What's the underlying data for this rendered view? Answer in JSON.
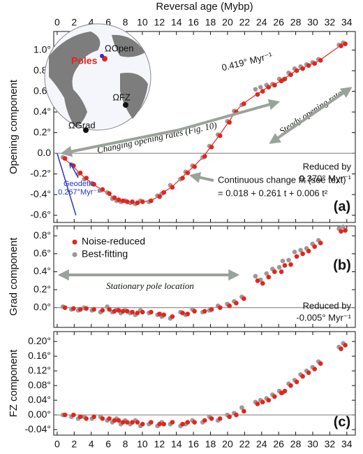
{
  "chart_data": [
    {
      "type": "scatter",
      "x_label": "Reversal age (Mybp)",
      "y_label": "Opening component",
      "x": [
        0.8,
        1.8,
        2.6,
        3.3,
        4.2,
        5.2,
        6.0,
        6.6,
        7.1,
        7.6,
        8.1,
        8.7,
        9.3,
        9.9,
        10.9,
        11.9,
        12.4,
        13.4,
        14.6,
        15.2,
        16.0,
        17.2,
        18.0,
        19.0,
        20.1,
        20.9,
        21.8,
        23.4,
        24.0,
        24.7,
        25.4,
        26.2,
        26.6,
        27.3,
        28.0,
        28.7,
        29.4,
        30.1,
        30.8,
        33.2,
        33.7
      ],
      "series": [
        {
          "name": "Best-fitting",
          "color": "#999999",
          "values": [
            -0.04,
            -0.11,
            -0.2,
            -0.25,
            -0.29,
            -0.36,
            -0.38,
            -0.44,
            -0.46,
            -0.47,
            -0.46,
            -0.48,
            -0.49,
            -0.46,
            -0.47,
            -0.41,
            -0.39,
            -0.31,
            -0.25,
            -0.18,
            -0.12,
            -0.04,
            0.07,
            0.18,
            0.31,
            0.41,
            0.47,
            0.62,
            0.64,
            0.66,
            0.67,
            0.72,
            0.71,
            0.78,
            0.82,
            0.84,
            0.86,
            0.88,
            0.91,
            1.05,
            1.07
          ]
        },
        {
          "name": "Noise-reduced",
          "color": "#e8231a",
          "line": true,
          "values": [
            -0.05,
            -0.12,
            -0.19,
            -0.24,
            -0.3,
            -0.35,
            -0.39,
            -0.43,
            -0.45,
            -0.46,
            -0.47,
            -0.47,
            -0.48,
            -0.47,
            -0.46,
            -0.42,
            -0.38,
            -0.33,
            -0.24,
            -0.19,
            -0.13,
            -0.03,
            0.06,
            0.17,
            0.3,
            0.4,
            0.48,
            0.57,
            0.6,
            0.64,
            0.66,
            0.7,
            0.72,
            0.76,
            0.8,
            0.82,
            0.85,
            0.87,
            0.9,
            1.04,
            1.06
          ]
        }
      ],
      "geodetic": {
        "x": [
          0,
          2.2
        ],
        "y": [
          0,
          -0.6
        ],
        "color": "#2233cc"
      },
      "xlim": [
        -0.4,
        35
      ],
      "xticks": [
        0,
        2,
        4,
        6,
        8,
        10,
        12,
        14,
        16,
        18,
        20,
        22,
        24,
        26,
        28,
        30,
        32,
        34
      ],
      "ylim": [
        -0.67,
        1.18
      ],
      "yticks": [
        {
          "value": -0.6,
          "label": "-0.6°"
        },
        {
          "value": -0.4,
          "label": "-0.4°"
        },
        {
          "value": -0.2,
          "label": "-0.2°"
        },
        {
          "value": 0.0,
          "label": "0.0"
        },
        {
          "value": 0.2,
          "label": "0.2°"
        },
        {
          "value": 0.4,
          "label": "0.4°"
        },
        {
          "value": 0.6,
          "label": "0.6°"
        },
        {
          "value": 0.8,
          "label": "0.8°"
        },
        {
          "value": 1.0,
          "label": "1.0°"
        }
      ],
      "annotations": {
        "rate": "0.419° Myr⁻¹",
        "steady": "Steady opening rates",
        "changing": "Changing opening rates (Fig. 10)",
        "reduced": "Reduced by",
        "reduced_rate": "0.370° Myr⁻¹",
        "fit": "Continuous change fit (see text)",
        "fit_eq": "= 0.018 + 0.261 t + 0.006 t²",
        "geodetic": "Geodetic",
        "geodetic_rate": "0.267°Myr⁻¹",
        "panel": "(a)"
      },
      "inset": {
        "poles": "Poles",
        "open": "ΩOpen",
        "fz": "ΩFZ",
        "grad": "ΩGrad"
      }
    },
    {
      "type": "scatter",
      "y_label": "Grad component",
      "legend": "upper left",
      "x": [
        0.8,
        1.8,
        2.6,
        3.3,
        4.2,
        5.2,
        6.0,
        6.6,
        7.1,
        7.6,
        8.1,
        8.7,
        9.3,
        9.9,
        10.9,
        11.9,
        12.4,
        13.4,
        14.6,
        15.2,
        16.0,
        17.2,
        18.0,
        19.0,
        20.1,
        20.9,
        21.8,
        23.4,
        24.0,
        24.7,
        25.4,
        26.2,
        26.6,
        27.3,
        28.0,
        28.7,
        29.4,
        30.1,
        30.8,
        33.2,
        33.7
      ],
      "series": [
        {
          "name": "Best-fitting",
          "color": "#999999",
          "values": [
            0.01,
            -0.02,
            -0.03,
            0.0,
            -0.03,
            -0.05,
            0.01,
            -0.05,
            -0.02,
            -0.06,
            -0.03,
            -0.06,
            -0.08,
            -0.03,
            -0.06,
            -0.08,
            -0.1,
            -0.12,
            -0.05,
            -0.08,
            -0.02,
            -0.05,
            -0.03,
            0.02,
            0.04,
            0.07,
            0.12,
            0.35,
            0.31,
            0.38,
            0.43,
            0.45,
            0.52,
            0.53,
            0.62,
            0.64,
            0.66,
            0.71,
            0.75,
            0.88,
            0.9
          ]
        },
        {
          "name": "Noise-reduced",
          "color": "#e8231a",
          "values": [
            0.0,
            -0.01,
            -0.02,
            -0.01,
            -0.02,
            -0.03,
            -0.02,
            -0.04,
            -0.03,
            -0.04,
            -0.04,
            -0.05,
            -0.06,
            -0.05,
            -0.05,
            -0.07,
            -0.08,
            -0.1,
            -0.06,
            -0.07,
            -0.04,
            -0.04,
            -0.02,
            0.0,
            0.02,
            0.05,
            0.1,
            0.3,
            0.27,
            0.34,
            0.4,
            0.4,
            0.47,
            0.48,
            0.57,
            0.6,
            0.63,
            0.68,
            0.72,
            0.85,
            0.86
          ]
        }
      ],
      "xlim": [
        -0.4,
        35
      ],
      "xticks": [
        0,
        2,
        4,
        6,
        8,
        10,
        12,
        14,
        16,
        18,
        20,
        22,
        24,
        26,
        28,
        30,
        32,
        34
      ],
      "ylim": [
        -0.22,
        0.91
      ],
      "yticks": [
        {
          "value": 0.0,
          "label": "0.0°"
        },
        {
          "value": 0.2,
          "label": "0.2°"
        },
        {
          "value": 0.4,
          "label": "0.4°"
        },
        {
          "value": 0.6,
          "label": "0.6°"
        },
        {
          "value": 0.8,
          "label": "0.8°"
        }
      ],
      "annotations": {
        "stationary": "Stationary pole location",
        "reduced": "Reduced by",
        "reduced_rate": "-0.005° Myr⁻¹",
        "panel": "(b)"
      }
    },
    {
      "type": "scatter",
      "y_label": "FZ component",
      "x": [
        0.8,
        1.8,
        2.6,
        3.3,
        4.2,
        5.2,
        6.0,
        6.6,
        7.1,
        7.6,
        8.1,
        8.7,
        9.3,
        9.9,
        10.9,
        11.9,
        12.4,
        13.4,
        14.6,
        15.2,
        16.0,
        17.2,
        18.0,
        19.0,
        20.1,
        20.9,
        21.8,
        23.4,
        24.0,
        24.7,
        25.4,
        26.2,
        26.6,
        27.3,
        28.0,
        28.7,
        29.4,
        30.1,
        30.8,
        33.2,
        33.7
      ],
      "series": [
        {
          "name": "Best-fitting",
          "color": "#999999",
          "values": [
            0.0,
            -0.005,
            -0.01,
            -0.005,
            -0.01,
            -0.005,
            -0.015,
            -0.02,
            -0.01,
            -0.025,
            -0.015,
            -0.025,
            -0.015,
            -0.03,
            -0.025,
            -0.03,
            -0.02,
            -0.025,
            -0.03,
            -0.025,
            -0.015,
            -0.02,
            -0.005,
            -0.015,
            0.0,
            0.005,
            0.02,
            0.035,
            0.04,
            0.045,
            0.055,
            0.065,
            0.06,
            0.085,
            0.095,
            0.11,
            0.12,
            0.13,
            0.145,
            0.185,
            0.195
          ]
        },
        {
          "name": "Noise-reduced",
          "color": "#e8231a",
          "values": [
            0.0,
            0.0,
            -0.005,
            -0.01,
            -0.005,
            -0.01,
            -0.01,
            -0.015,
            -0.015,
            -0.02,
            -0.02,
            -0.02,
            -0.02,
            -0.025,
            -0.02,
            -0.025,
            -0.025,
            -0.02,
            -0.025,
            -0.02,
            -0.02,
            -0.015,
            -0.01,
            -0.01,
            -0.005,
            0.0,
            0.01,
            0.03,
            0.035,
            0.04,
            0.05,
            0.06,
            0.065,
            0.08,
            0.09,
            0.105,
            0.115,
            0.125,
            0.14,
            0.18,
            0.19
          ]
        }
      ],
      "xlim": [
        -0.4,
        35
      ],
      "xticks": [
        0,
        2,
        4,
        6,
        8,
        10,
        12,
        14,
        16,
        18,
        20,
        22,
        24,
        26,
        28,
        30,
        32,
        34
      ],
      "ylim": [
        -0.055,
        0.227
      ],
      "yticks": [
        {
          "value": -0.04,
          "label": "-0.04°"
        },
        {
          "value": 0.0,
          "label": "0.00°"
        },
        {
          "value": 0.04,
          "label": "0.04°"
        },
        {
          "value": 0.08,
          "label": "0.08°"
        },
        {
          "value": 0.12,
          "label": "0.12°"
        },
        {
          "value": 0.16,
          "label": "0.16°"
        },
        {
          "value": 0.2,
          "label": "0.20°"
        }
      ],
      "annotations": {
        "panel": "(c)"
      }
    }
  ]
}
